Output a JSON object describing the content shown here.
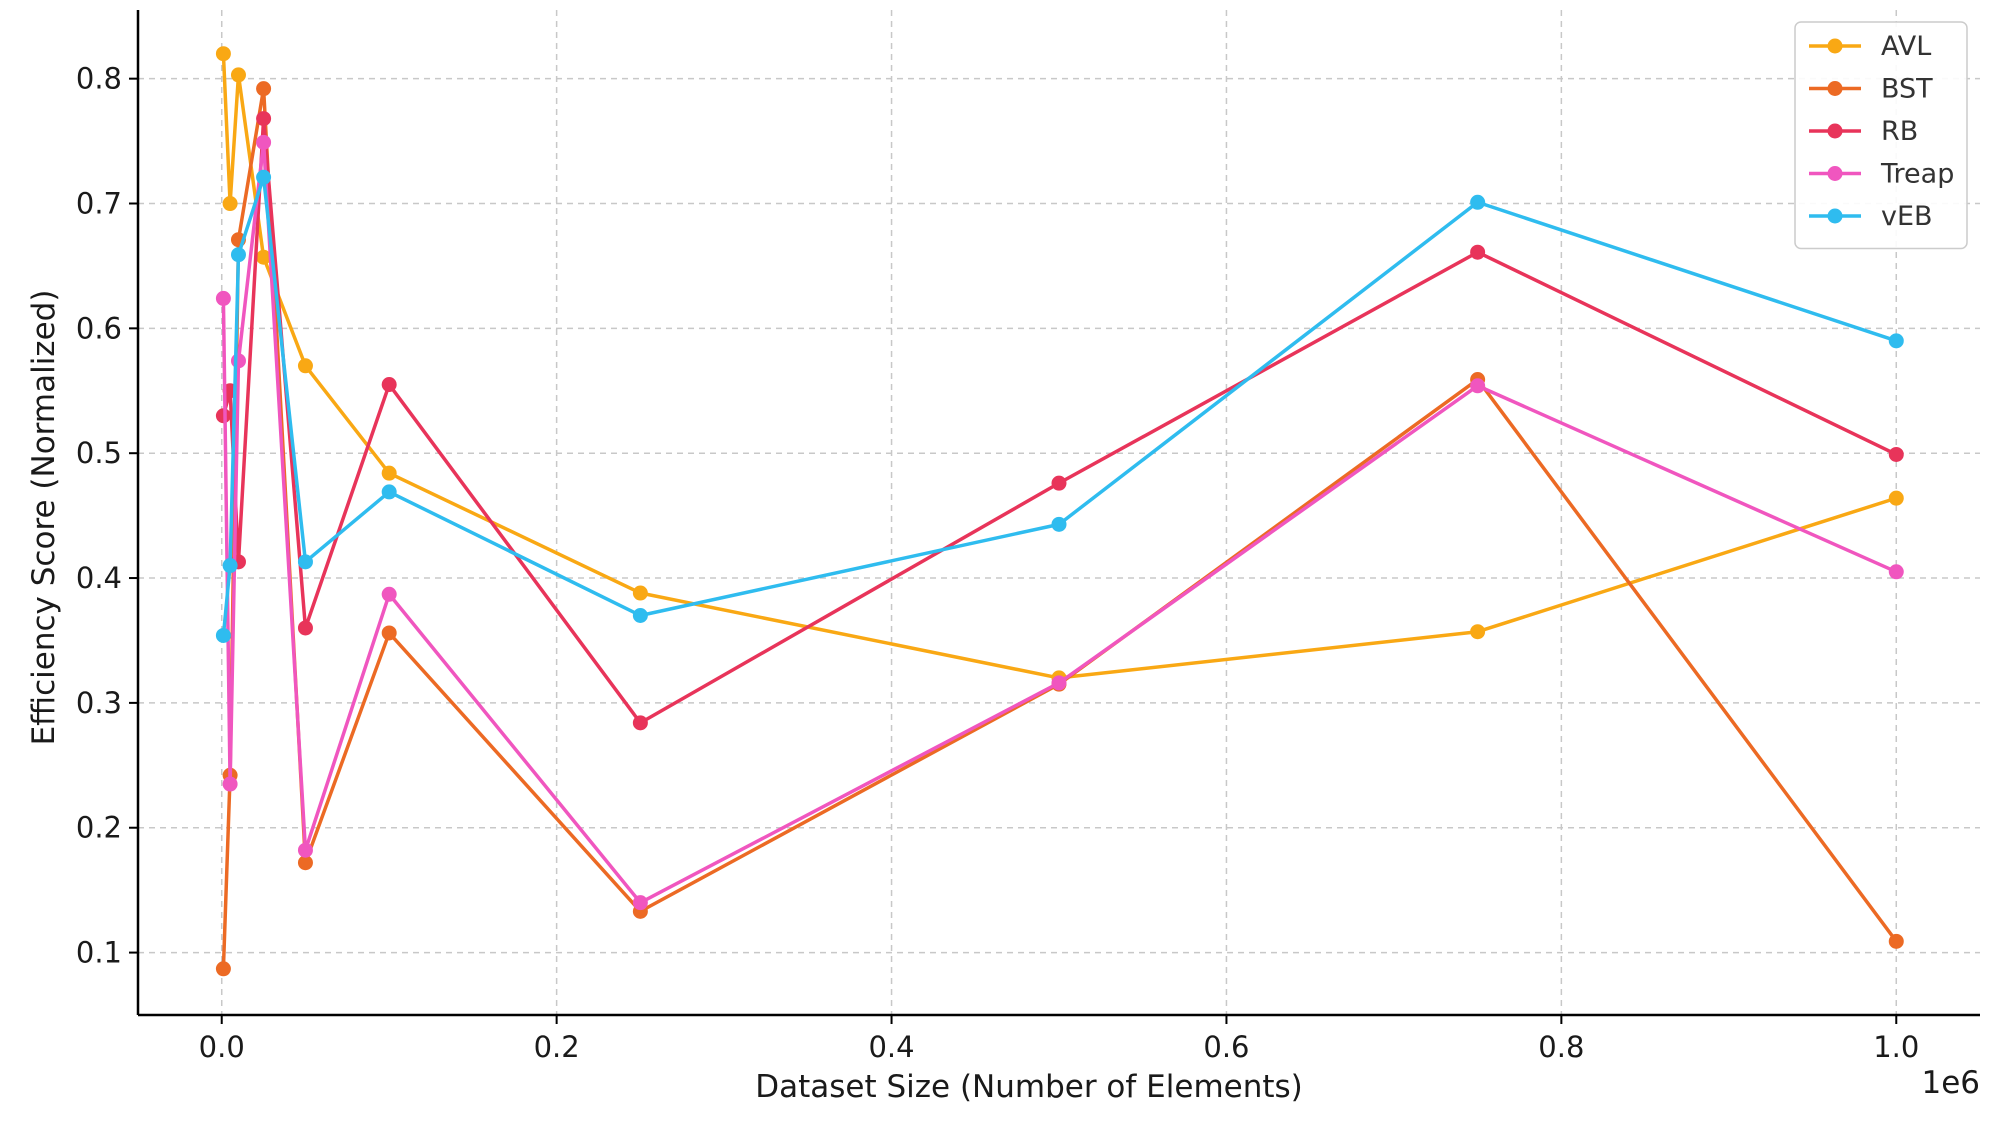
{
  "chart_data": {
    "type": "line",
    "xlabel": "Dataset Size (Number of Elements)",
    "ylabel": "Efficiency Score (Normalized)",
    "x_offset_label": "1e6",
    "xlim": [
      -0.05,
      1.05
    ],
    "ylim": [
      0.05,
      0.855
    ],
    "xticks": [
      0.0,
      0.2,
      0.4,
      0.6,
      0.8,
      1.0
    ],
    "xtick_labels": [
      "0.0",
      "0.2",
      "0.4",
      "0.6",
      "0.8",
      "1.0"
    ],
    "yticks": [
      0.1,
      0.2,
      0.3,
      0.4,
      0.5,
      0.6,
      0.7,
      0.8
    ],
    "ytick_labels": [
      "0.1",
      "0.2",
      "0.3",
      "0.4",
      "0.5",
      "0.6",
      "0.7",
      "0.8"
    ],
    "grid": true,
    "legend_position": "top-right",
    "x": [
      0.001,
      0.005,
      0.01,
      0.025,
      0.05,
      0.1,
      0.25,
      0.5,
      0.75,
      1.0
    ],
    "series": [
      {
        "name": "AVL",
        "color": "#F9A814",
        "values": [
          0.82,
          0.7,
          0.803,
          0.657,
          0.57,
          0.484,
          0.388,
          0.32,
          0.357,
          0.464
        ]
      },
      {
        "name": "BST",
        "color": "#EC6A24",
        "values": [
          0.087,
          0.242,
          0.671,
          0.792,
          0.172,
          0.356,
          0.133,
          0.315,
          0.559,
          0.109
        ]
      },
      {
        "name": "RB",
        "color": "#E8345A",
        "values": [
          0.53,
          0.55,
          0.413,
          0.768,
          0.36,
          0.555,
          0.284,
          0.476,
          0.661,
          0.499
        ]
      },
      {
        "name": "Treap",
        "color": "#F056BF",
        "values": [
          0.624,
          0.235,
          0.574,
          0.749,
          0.182,
          0.387,
          0.14,
          0.316,
          0.554,
          0.405
        ]
      },
      {
        "name": "vEB",
        "color": "#2FBCEF",
        "values": [
          0.354,
          0.41,
          0.659,
          0.721,
          0.413,
          0.469,
          0.37,
          0.443,
          0.701,
          0.59
        ]
      }
    ]
  }
}
